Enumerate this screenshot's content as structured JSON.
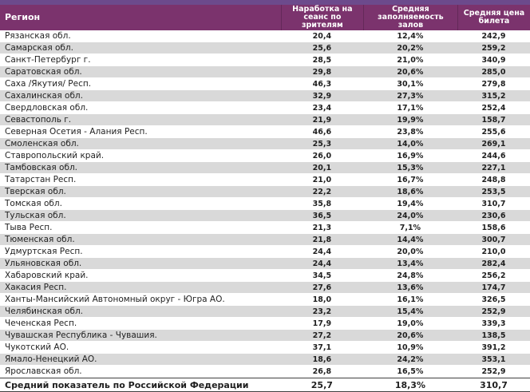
{
  "colors": {
    "top_strip": "#6C4A8C",
    "header_bg": "#7B336D",
    "header_text": "#FFFFFF",
    "row_alt_bg": "#D9D9D9",
    "row_text": "#1F1F1F",
    "total_border": "#404040"
  },
  "chart_data": {
    "type": "table",
    "title": "",
    "columns": [
      "Регион",
      "Наработка на сеанс по зрителям",
      "Средняя заполняемость залов",
      "Средняя цена билета"
    ],
    "rows": [
      [
        "Рязанская обл.",
        "20,4",
        "12,4%",
        "242,9"
      ],
      [
        "Самарская обл.",
        "25,6",
        "20,2%",
        "259,2"
      ],
      [
        "Санкт-Петербург г.",
        "28,5",
        "21,0%",
        "340,9"
      ],
      [
        "Саратовская обл.",
        "29,8",
        "20,6%",
        "285,0"
      ],
      [
        "Саха /Якутия/ Респ.",
        "46,3",
        "30,1%",
        "279,8"
      ],
      [
        "Сахалинская обл.",
        "32,9",
        "27,3%",
        "315,2"
      ],
      [
        "Свердловская обл.",
        "23,4",
        "17,1%",
        "252,4"
      ],
      [
        "Севастополь г.",
        "21,9",
        "19,9%",
        "158,7"
      ],
      [
        "Северная Осетия - Алания Респ.",
        "46,6",
        "23,8%",
        "255,6"
      ],
      [
        "Смоленская обл.",
        "25,3",
        "14,0%",
        "269,1"
      ],
      [
        "Ставропольский край.",
        "26,0",
        "16,9%",
        "244,6"
      ],
      [
        "Тамбовская обл.",
        "20,1",
        "15,3%",
        "227,1"
      ],
      [
        "Татарстан Респ.",
        "21,0",
        "16,7%",
        "248,8"
      ],
      [
        "Тверская обл.",
        "22,2",
        "18,6%",
        "253,5"
      ],
      [
        "Томская обл.",
        "35,8",
        "19,4%",
        "310,7"
      ],
      [
        "Тульская обл.",
        "36,5",
        "24,0%",
        "230,6"
      ],
      [
        "Тыва Респ.",
        "21,3",
        "7,1%",
        "158,6"
      ],
      [
        "Тюменская обл.",
        "21,8",
        "14,4%",
        "300,7"
      ],
      [
        "Удмуртская Респ.",
        "24,4",
        "20,0%",
        "210,0"
      ],
      [
        "Ульяновская обл.",
        "24,4",
        "13,4%",
        "282,4"
      ],
      [
        "Хабаровский край.",
        "34,5",
        "24,8%",
        "256,2"
      ],
      [
        "Хакасия Респ.",
        "27,6",
        "13,6%",
        "174,7"
      ],
      [
        "Ханты-Мансийский Автономный округ - Югра АО.",
        "18,0",
        "16,1%",
        "326,5"
      ],
      [
        "Челябинская обл.",
        "23,2",
        "15,4%",
        "252,9"
      ],
      [
        "Чеченская Респ.",
        "17,9",
        "19,0%",
        "339,3"
      ],
      [
        "Чувашская Республика - Чувашия.",
        "27,2",
        "20,6%",
        "138,5"
      ],
      [
        "Чукотский АО.",
        "37,1",
        "10,9%",
        "391,2"
      ],
      [
        "Ямало-Ненецкий АО.",
        "18,6",
        "24,2%",
        "353,1"
      ],
      [
        "Ярославская обл.",
        "26,8",
        "16,5%",
        "252,9"
      ]
    ],
    "total": [
      "Средний показатель по Российской Федерации",
      "25,7",
      "18,3%",
      "310,7"
    ],
    "layout": {
      "first_data_row_background": "white",
      "alternating_row_background": "light-gray",
      "value_alignment": "center",
      "total_row_style": "bold, top and bottom border"
    }
  }
}
